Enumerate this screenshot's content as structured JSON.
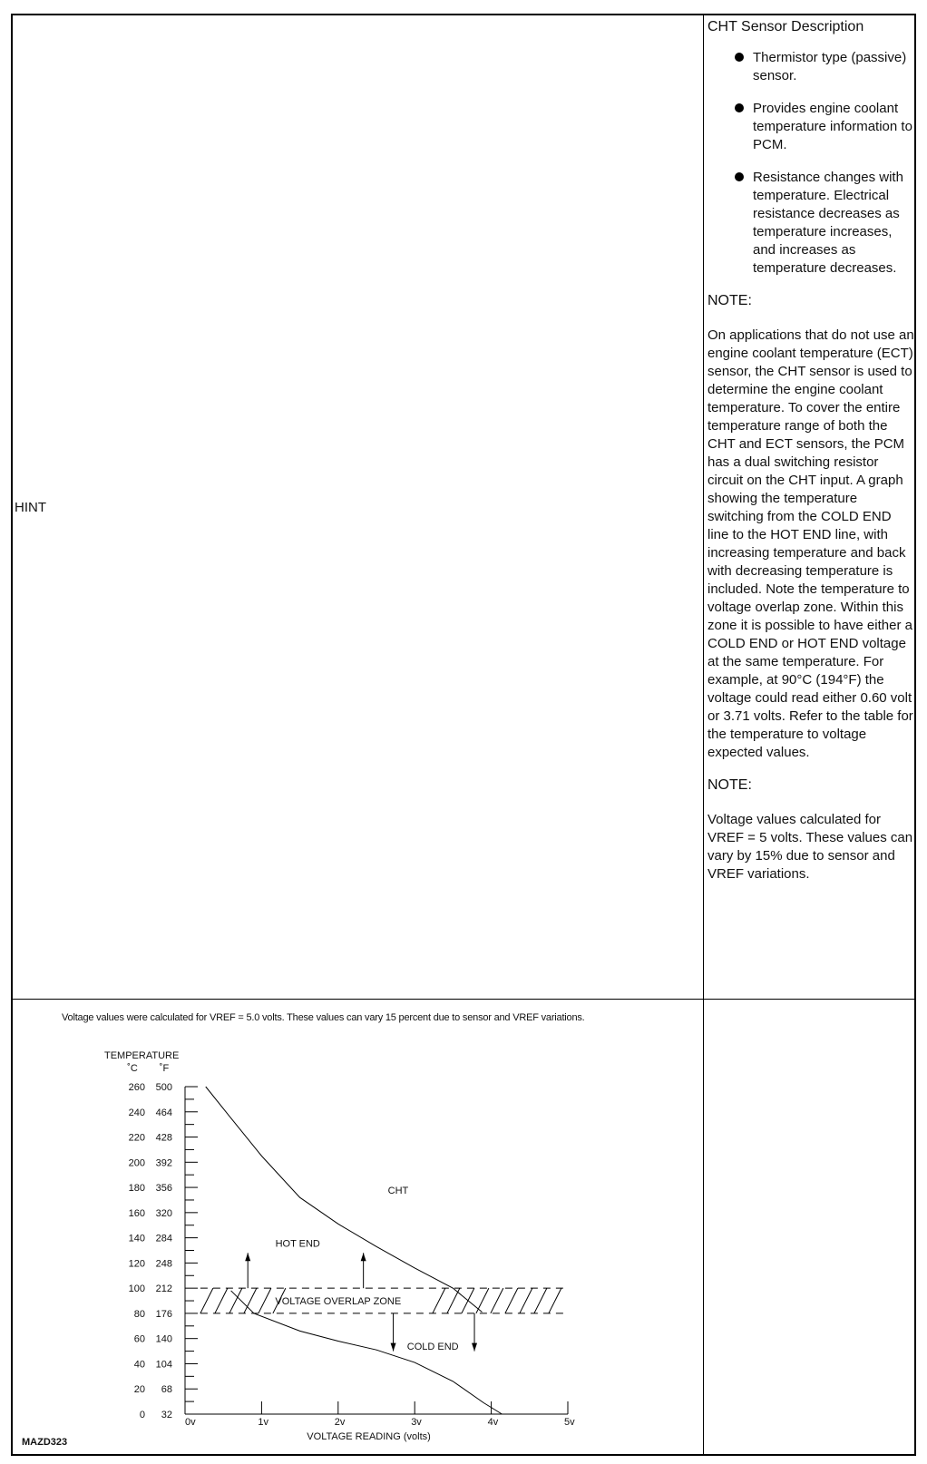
{
  "hint_label": "HINT",
  "description": {
    "title": "CHT Sensor Description",
    "bullets": [
      "Thermistor type (passive) sensor.",
      "Provides engine coolant temperature information to PCM.",
      "Resistance changes with temperature. Electrical resistance decreases as temperature increases, and increases as temperature decreases."
    ],
    "note1_heading": "NOTE:",
    "note1_text": "On applications that do not use an engine coolant temperature (ECT) sensor, the CHT sensor is used to determine the engine coolant temperature. To cover the entire temperature range of both the CHT and ECT sensors, the PCM has a dual switching resistor circuit on the CHT input. A graph showing the temperature switching from the COLD END line to the HOT END line, with increasing temperature and back with decreasing temperature is included. Note the temperature to voltage overlap zone. Within this zone it is possible to have either a COLD END or HOT END voltage at the same temperature. For example, at 90°C (194°F) the voltage could read either 0.60 volt or 3.71 volts. Refer to the table for the temperature to voltage expected values.",
    "note2_heading": "NOTE:",
    "note2_text": "Voltage values calculated for VREF = 5 volts. These values can vary by 15% due to sensor and VREF variations."
  },
  "figure": {
    "note": "Voltage values were calculated for VREF = 5.0 volts.  These values can vary 15 percent due to sensor and VREF variations.",
    "figure_id": "MAZD323"
  },
  "chart_data": {
    "type": "line",
    "ylabel": "TEMPERATURE",
    "ylabel_units": [
      "˚C",
      "˚F"
    ],
    "xlabel": "VOLTAGE READING (volts)",
    "xlim": [
      0,
      5
    ],
    "ylim": [
      0,
      260
    ],
    "x_ticks": [
      "0v",
      "1v",
      "2v",
      "3v",
      "4v",
      "5v"
    ],
    "y_ticks_c": [
      "260",
      "240",
      "220",
      "200",
      "180",
      "160",
      "140",
      "120",
      "100",
      "80",
      "60",
      "40",
      "20",
      "0"
    ],
    "y_ticks_f": [
      "500",
      "464",
      "428",
      "392",
      "356",
      "320",
      "284",
      "248",
      "212",
      "176",
      "140",
      "104",
      "68",
      "32"
    ],
    "labels": {
      "cht": "CHT",
      "hot_end": "HOT END",
      "cold_end": "COLD END",
      "overlap": "VOLTAGE OVERLAP ZONE"
    },
    "overlap_zone_c": [
      80,
      100
    ],
    "series": [
      {
        "name": "HOT END",
        "points": [
          [
            0.27,
            260
          ],
          [
            0.6,
            235
          ],
          [
            1.0,
            205
          ],
          [
            1.5,
            172
          ],
          [
            2.0,
            151
          ],
          [
            2.5,
            133
          ],
          [
            3.0,
            116
          ],
          [
            3.5,
            100
          ],
          [
            3.88,
            81
          ]
        ]
      },
      {
        "name": "COLD END",
        "points": [
          [
            0.6,
            98
          ],
          [
            0.9,
            80
          ],
          [
            1.5,
            66
          ],
          [
            2.0,
            58
          ],
          [
            2.5,
            51
          ],
          [
            3.0,
            41
          ],
          [
            3.5,
            26
          ],
          [
            3.9,
            9
          ],
          [
            4.14,
            0
          ]
        ]
      }
    ]
  }
}
